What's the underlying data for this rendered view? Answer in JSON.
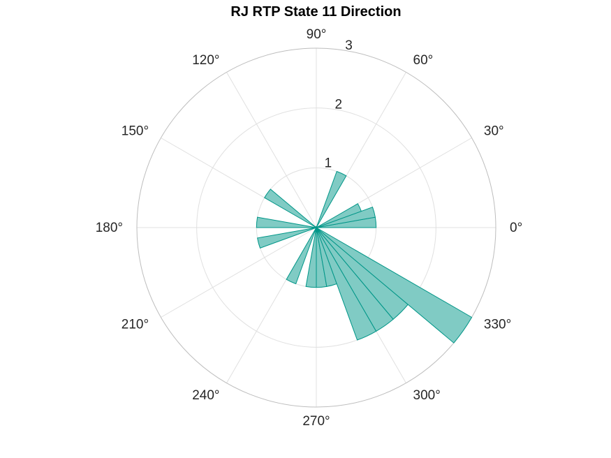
{
  "chart_data": {
    "type": "polar-histogram",
    "title": "RJ  RTP State 11 Direction",
    "r_ticks": [
      1,
      2,
      3
    ],
    "r_max": 3,
    "theta_ticks": [
      "0°",
      "30°",
      "60°",
      "90°",
      "120°",
      "150°",
      "180°",
      "210°",
      "240°",
      "270°",
      "300°",
      "330°"
    ],
    "bin_width_deg": 10,
    "bins": [
      {
        "start_deg": 0,
        "end_deg": 10,
        "value": 1
      },
      {
        "start_deg": 10,
        "end_deg": 20,
        "value": 1
      },
      {
        "start_deg": 20,
        "end_deg": 30,
        "value": 0.8
      },
      {
        "start_deg": 60,
        "end_deg": 70,
        "value": 1
      },
      {
        "start_deg": 140,
        "end_deg": 150,
        "value": 1
      },
      {
        "start_deg": 170,
        "end_deg": 180,
        "value": 1
      },
      {
        "start_deg": 190,
        "end_deg": 200,
        "value": 1
      },
      {
        "start_deg": 240,
        "end_deg": 250,
        "value": 1
      },
      {
        "start_deg": 260,
        "end_deg": 270,
        "value": 1
      },
      {
        "start_deg": 270,
        "end_deg": 280,
        "value": 1
      },
      {
        "start_deg": 280,
        "end_deg": 290,
        "value": 1
      },
      {
        "start_deg": 290,
        "end_deg": 300,
        "value": 2
      },
      {
        "start_deg": 300,
        "end_deg": 310,
        "value": 2
      },
      {
        "start_deg": 310,
        "end_deg": 320,
        "value": 2
      },
      {
        "start_deg": 320,
        "end_deg": 330,
        "value": 3
      }
    ],
    "colors": {
      "fill": "#80cbc4",
      "edge": "#009688",
      "grid": "#e0e0e0",
      "outer_ring": "#bdbdbd"
    }
  }
}
